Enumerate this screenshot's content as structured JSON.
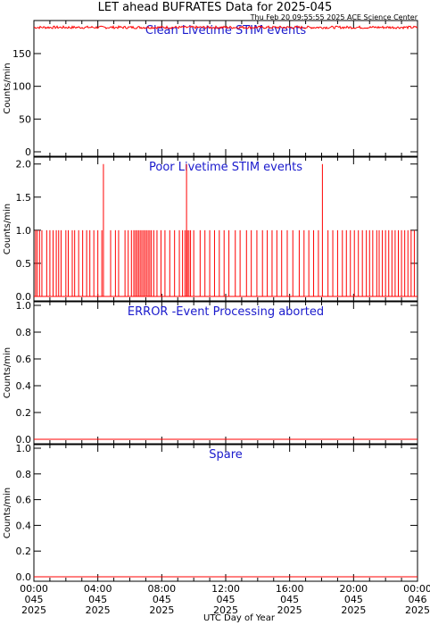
{
  "title": "LET ahead BUFRATES Data for 2025-045",
  "subtitle": "Thu Feb 20 09:55:55 2025 ACE Science Center",
  "xlabel": "UTC Day of Year",
  "series_color": "#ff0000",
  "panel_title_color": "#1a1acc",
  "x_ticks": [
    {
      "time": "00:00",
      "doy": "045",
      "year": "2025",
      "hour": 0
    },
    {
      "time": "04:00",
      "doy": "045",
      "year": "2025",
      "hour": 4
    },
    {
      "time": "08:00",
      "doy": "045",
      "year": "2025",
      "hour": 8
    },
    {
      "time": "12:00",
      "doy": "045",
      "year": "2025",
      "hour": 12
    },
    {
      "time": "16:00",
      "doy": "045",
      "year": "2025",
      "hour": 16
    },
    {
      "time": "20:00",
      "doy": "045",
      "year": "2025",
      "hour": 20
    },
    {
      "time": "00:00",
      "doy": "046",
      "year": "2025",
      "hour": 24
    }
  ],
  "chart_data": [
    {
      "type": "line",
      "title": "Clean Livetime STIM events",
      "ylabel": "Counts/min",
      "ylim": [
        0,
        195
      ],
      "yticks": [
        0,
        50,
        100,
        150
      ],
      "xlim": [
        0,
        24
      ],
      "description_level": 190,
      "series": [
        {
          "values": "~190 counts/min throughout the day with small fluctuations (188-192)"
        }
      ]
    },
    {
      "type": "line",
      "title": "Poor Livetime STIM events",
      "ylabel": "Counts/min",
      "ylim": [
        0,
        2.05
      ],
      "yticks": [
        0.0,
        0.5,
        1.0,
        1.5,
        2.0
      ],
      "tick_format": 1,
      "xlim": [
        0,
        24
      ],
      "spikes_to_2": [
        4.35,
        9.55,
        18.05
      ],
      "ones_hours": [
        0.1,
        0.2,
        0.35,
        0.5,
        0.8,
        1.0,
        1.2,
        1.4,
        1.55,
        1.7,
        2.0,
        2.15,
        2.4,
        2.55,
        2.8,
        3.05,
        3.3,
        3.5,
        3.75,
        4.0,
        4.25,
        4.8,
        5.1,
        5.3,
        5.7,
        5.9,
        6.1,
        6.25,
        6.35,
        6.45,
        6.55,
        6.65,
        6.75,
        6.85,
        6.95,
        7.05,
        7.15,
        7.25,
        7.35,
        7.5,
        7.7,
        7.95,
        8.2,
        8.5,
        8.8,
        9.1,
        9.3,
        9.45,
        9.6,
        9.7,
        9.8,
        10.0,
        10.4,
        10.7,
        11.0,
        11.3,
        11.6,
        11.9,
        12.2,
        12.6,
        12.9,
        13.3,
        13.6,
        13.95,
        14.3,
        14.6,
        14.9,
        15.2,
        15.5,
        15.85,
        16.2,
        16.6,
        16.9,
        17.2,
        17.5,
        17.8,
        18.4,
        18.7,
        19.0,
        19.3,
        19.55,
        19.8,
        20.05,
        20.3,
        20.55,
        20.8,
        21.0,
        21.2,
        21.45,
        21.6,
        21.8,
        22.0,
        22.2,
        22.4,
        22.6,
        22.8,
        23.0,
        23.2,
        23.4,
        23.6,
        23.8
      ]
    },
    {
      "type": "line",
      "title": "ERROR -Event Processing aborted",
      "ylabel": "Counts/min",
      "ylim": [
        0,
        1.0
      ],
      "yticks": [
        0.0,
        0.2,
        0.4,
        0.6,
        0.8,
        1.0
      ],
      "tick_format": 1,
      "xlim": [
        0,
        24
      ],
      "constant_value": 0
    },
    {
      "type": "line",
      "title": "Spare",
      "ylabel": "Counts/min",
      "ylim": [
        0,
        1.0
      ],
      "yticks": [
        0.0,
        0.2,
        0.4,
        0.6,
        0.8,
        1.0
      ],
      "tick_format": 1,
      "xlim": [
        0,
        24
      ],
      "constant_value": 0
    }
  ]
}
